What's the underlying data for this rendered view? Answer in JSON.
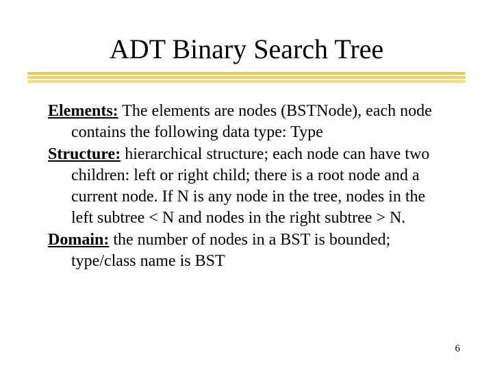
{
  "title": "ADT Binary Search Tree",
  "underline": {
    "colors": [
      "#f2c744",
      "#f4d062",
      "#f6d980"
    ],
    "offsets": [
      0,
      6,
      12
    ],
    "height": 4
  },
  "sections": [
    {
      "label": "Elements:",
      "text": " The elements are nodes (BSTNode), each node contains the following data type: Type"
    },
    {
      "label": "Structure:",
      "text": " hierarchical structure; each node can have two children: left or right child; there is a root node and a current node. If N is any node in the tree, nodes in the left subtree < N and nodes in the right subtree > N."
    },
    {
      "label": "Domain:",
      "text": " the number of nodes in a BST is bounded; type/class name is BST"
    }
  ],
  "page_number": "6",
  "typography": {
    "title_fontsize": 40,
    "body_fontsize": 24,
    "pagenum_fontsize": 15,
    "font_family": "Times New Roman"
  },
  "colors": {
    "background": "#ffffff",
    "text": "#000000"
  }
}
